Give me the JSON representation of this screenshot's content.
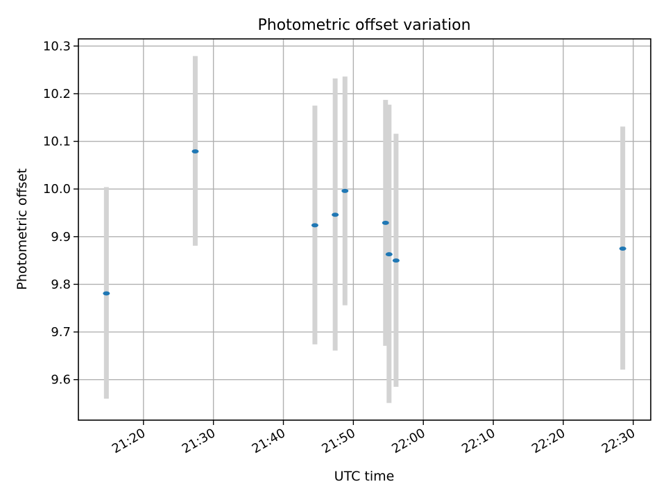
{
  "chart_data": {
    "type": "scatter",
    "title": "Photometric offset variation",
    "xlabel": "UTC time",
    "ylabel": "Photometric offset",
    "x_tick_labels": [
      "21:20",
      "21:30",
      "21:40",
      "21:50",
      "22:00",
      "22:10",
      "22:20",
      "22:30"
    ],
    "x_tick_minutes": [
      1280,
      1290,
      1300,
      1310,
      1320,
      1330,
      1340,
      1350
    ],
    "xlim_minutes": [
      1270.7,
      1352.5
    ],
    "y_ticks": [
      9.6,
      9.7,
      9.8,
      9.9,
      10.0,
      10.1,
      10.2,
      10.3
    ],
    "y_tick_labels": [
      "9.6",
      "9.7",
      "9.8",
      "9.9",
      "10.0",
      "10.1",
      "10.2",
      "10.3"
    ],
    "ylim": [
      9.515,
      10.315
    ],
    "grid": true,
    "series": [
      {
        "x": [
          "21:14:42",
          "21:27:24",
          "21:44:30",
          "21:47:24",
          "21:48:48",
          "21:54:36",
          "21:55:06",
          "21:56:06",
          "22:28:30"
        ],
        "x_minutes": [
          1274.7,
          1287.4,
          1304.5,
          1307.4,
          1308.8,
          1314.6,
          1315.1,
          1316.1,
          1348.5
        ],
        "y": [
          9.781,
          10.079,
          9.924,
          9.946,
          9.996,
          9.929,
          9.863,
          9.85,
          9.875
        ],
        "y_low": [
          9.56,
          9.881,
          9.674,
          9.661,
          9.756,
          9.671,
          9.551,
          9.585,
          9.621
        ],
        "y_high": [
          10.004,
          10.279,
          10.175,
          10.232,
          10.236,
          10.187,
          10.177,
          10.116,
          10.131
        ]
      }
    ],
    "colors": {
      "points": "#1f77b4",
      "error_bars": "#d3d3d3",
      "grid": "#b0b0b0"
    }
  }
}
